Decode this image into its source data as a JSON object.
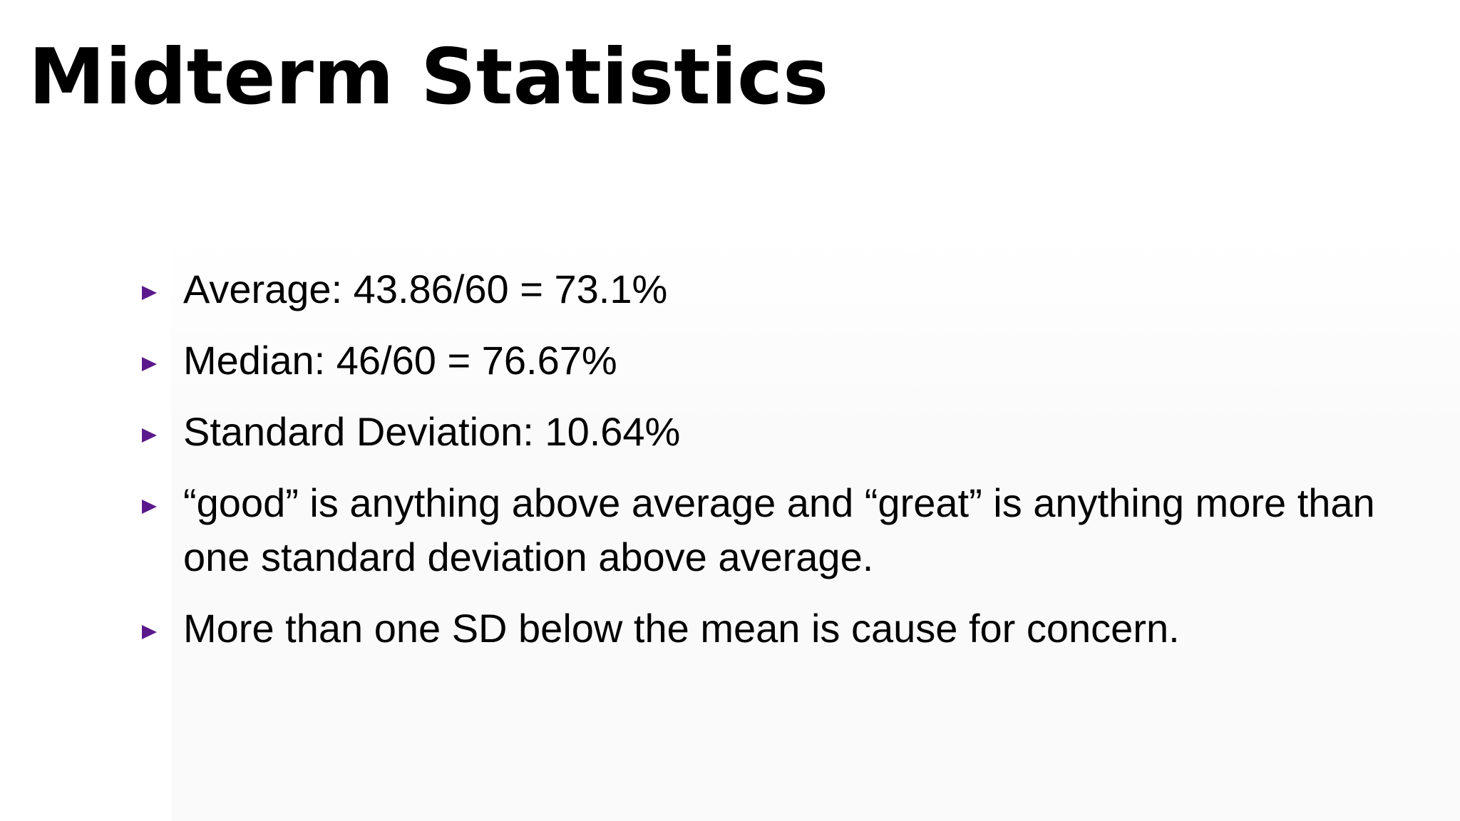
{
  "slide": {
    "title": "Midterm Statistics",
    "bullets": [
      "Average: 43.86/60 = 73.1%",
      "Median: 46/60 = 76.67%",
      "Standard Deviation: 10.64%",
      "“good” is anything above average and “great” is anything more than one standard deviation above average.",
      "More than one SD below the mean is cause for concern."
    ],
    "bullet_icon": "triangle-right-icon",
    "colors": {
      "bullet": "#5b1a8c",
      "text": "#000000",
      "background": "#ffffff"
    }
  }
}
